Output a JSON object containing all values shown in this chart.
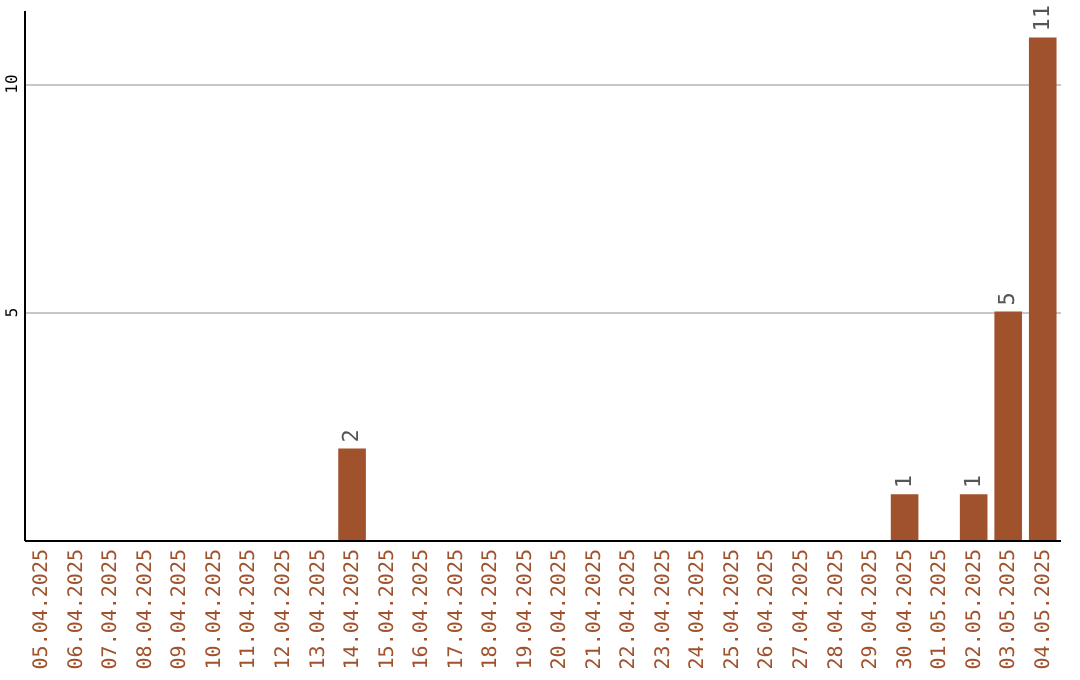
{
  "chart_data": {
    "type": "bar",
    "categories": [
      "05.04.2025",
      "06.04.2025",
      "07.04.2025",
      "08.04.2025",
      "09.04.2025",
      "10.04.2025",
      "11.04.2025",
      "12.04.2025",
      "13.04.2025",
      "14.04.2025",
      "15.04.2025",
      "16.04.2025",
      "17.04.2025",
      "18.04.2025",
      "19.04.2025",
      "20.04.2025",
      "21.04.2025",
      "22.04.2025",
      "23.04.2025",
      "24.04.2025",
      "25.04.2025",
      "26.04.2025",
      "27.04.2025",
      "28.04.2025",
      "29.04.2025",
      "30.04.2025",
      "01.05.2025",
      "02.05.2025",
      "03.05.2025",
      "04.05.2025"
    ],
    "values": [
      0,
      0,
      0,
      0,
      0,
      0,
      0,
      0,
      0,
      2,
      0,
      0,
      0,
      0,
      0,
      0,
      0,
      0,
      0,
      0,
      0,
      0,
      0,
      0,
      0,
      1,
      0,
      1,
      5,
      11
    ],
    "value_labels": [
      null,
      null,
      null,
      null,
      null,
      null,
      null,
      null,
      null,
      "2",
      null,
      null,
      null,
      null,
      null,
      null,
      null,
      null,
      null,
      null,
      null,
      null,
      null,
      null,
      null,
      "1",
      null,
      "1",
      "5",
      "11"
    ],
    "color": "#a0522d",
    "ylim": [
      0,
      11.6
    ],
    "yticks": [
      5,
      10
    ],
    "grid": "y"
  }
}
